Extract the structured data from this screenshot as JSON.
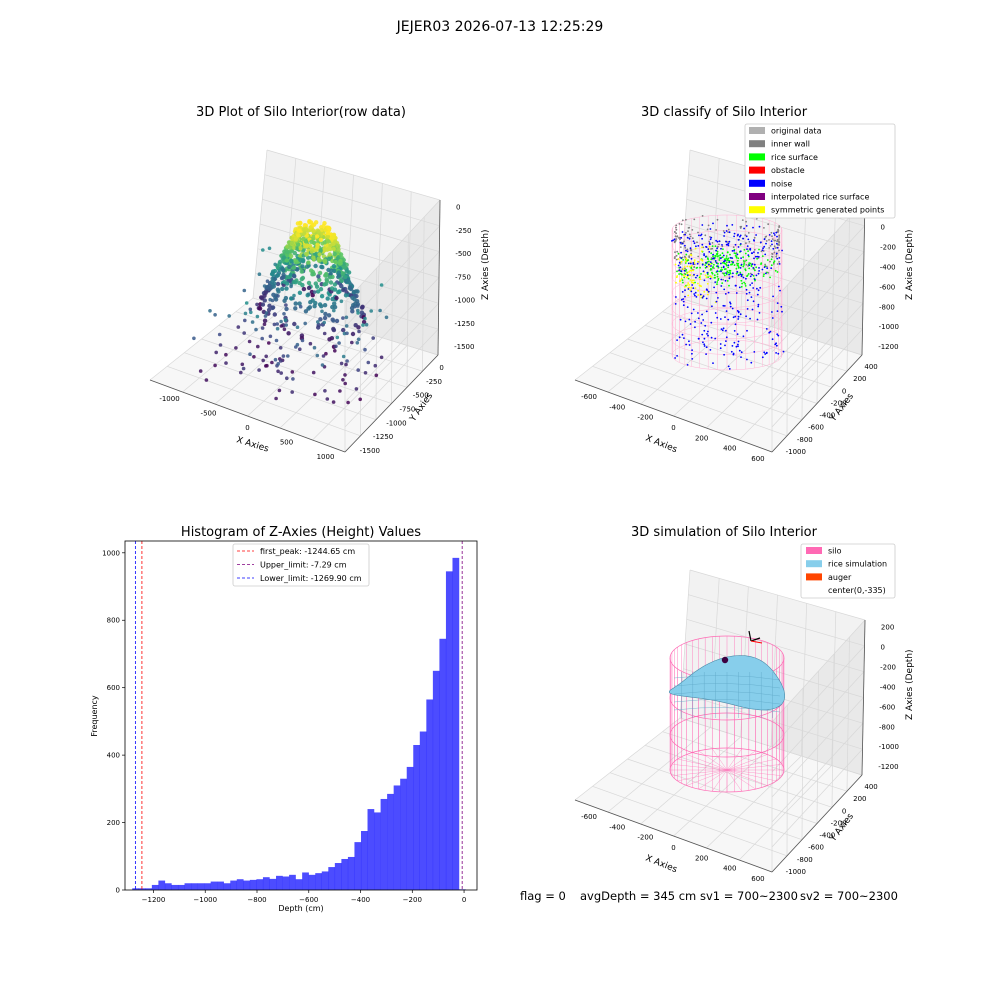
{
  "figure": {
    "suptitle": "JEJER03 2026-07-13 12:25:29",
    "footer": {
      "flag": "flag = 0",
      "avg": "avgDepth = 345 cm",
      "sv1": "sv1 = 700~2300",
      "sv2": "sv2 = 700~2300"
    }
  },
  "chart_data": [
    {
      "type": "scatter",
      "subtype": "3d",
      "title": "3D Plot of Silo Interior(row data)",
      "xlabel": "X Axies",
      "ylabel": "Y Axies",
      "zlabel": "Z Axies (Depth)",
      "xticks": [
        "-1000",
        "-500",
        "0",
        "500",
        "1000"
      ],
      "yticks": [
        "0",
        "-250",
        "-500",
        "-750",
        "-1000",
        "-1250",
        "-1500"
      ],
      "zticks": [
        "0",
        "-250",
        "-500",
        "-750",
        "-1000",
        "-1250",
        "-1500"
      ],
      "xlim": [
        -1150,
        1100
      ],
      "ylim": [
        -1550,
        100
      ],
      "zlim": [
        -1650,
        50
      ],
      "colormap": "viridis"
    },
    {
      "type": "scatter",
      "subtype": "3d",
      "title": "3D classify of Silo Interior",
      "xlabel": "X Axies",
      "ylabel": "Y Axies",
      "zlabel": "Z Axies (Depth)",
      "xticks": [
        "-600",
        "-400",
        "-200",
        "0",
        "200",
        "400",
        "600"
      ],
      "yticks": [
        "400",
        "200",
        "0",
        "-200",
        "-400",
        "-600",
        "-800",
        "-1000"
      ],
      "zticks": [
        "200",
        "0",
        "-200",
        "-400",
        "-600",
        "-800",
        "-1000",
        "-1200"
      ],
      "legend_position": "top-right",
      "legend": [
        {
          "label": "original data",
          "color": "#b0b0b0"
        },
        {
          "label": "inner wall",
          "color": "#808080"
        },
        {
          "label": "rice surface",
          "color": "#00ff00"
        },
        {
          "label": "obstacle",
          "color": "#ff0000"
        },
        {
          "label": "noise",
          "color": "#0000ff"
        },
        {
          "label": "interpolated rice surface",
          "color": "#800080"
        },
        {
          "label": "symmetric generated points",
          "color": "#ffff00"
        }
      ]
    },
    {
      "type": "bar",
      "subtype": "histogram",
      "title": "Histogram of Z-Axies (Height) Values",
      "xlabel": "Depth (cm)",
      "ylabel": "Frequency",
      "xlim": [
        -1310,
        50
      ],
      "ylim": [
        0,
        1035
      ],
      "xticks": [
        -1200,
        -1000,
        -800,
        -600,
        -400,
        -200,
        0
      ],
      "xtick_labels": [
        "−1200",
        "−1000",
        "−800",
        "−600",
        "−400",
        "−200",
        "0"
      ],
      "yticks": [
        0,
        200,
        400,
        600,
        800,
        1000
      ],
      "bin_width": 25.25,
      "bin_start": -1282,
      "bar_color": "#0000ff",
      "values": [
        5,
        5,
        5,
        15,
        28,
        20,
        15,
        15,
        20,
        20,
        20,
        20,
        25,
        25,
        20,
        28,
        32,
        28,
        30,
        32,
        38,
        33,
        42,
        40,
        45,
        32,
        52,
        45,
        50,
        55,
        68,
        80,
        92,
        98,
        142,
        175,
        240,
        230,
        270,
        285,
        310,
        330,
        365,
        430,
        470,
        565,
        650,
        745,
        945,
        985,
        2
      ],
      "lines": [
        {
          "label": "first_peak: -1244.65 cm",
          "x": -1244.65,
          "color": "#ff0000"
        },
        {
          "label": "Upper_limit: -7.29 cm",
          "x": -7.29,
          "color": "#800080"
        },
        {
          "label": "Lower_limit: -1269.90 cm",
          "x": -1269.9,
          "color": "#0000ff"
        }
      ],
      "legend_position": "top-center"
    },
    {
      "type": "area",
      "subtype": "3d-surface",
      "title": "3D simulation of Silo Interior",
      "xlabel": "X Axies",
      "ylabel": "Y Axies",
      "zlabel": "Z Axies (Depth)",
      "xticks": [
        "-600",
        "-400",
        "-200",
        "0",
        "200",
        "400",
        "600"
      ],
      "yticks": [
        "400",
        "200",
        "0",
        "-200",
        "-400",
        "-600",
        "-800",
        "-1000"
      ],
      "zticks": [
        "200",
        "0",
        "-200",
        "-400",
        "-600",
        "-800",
        "-1000",
        "-1200"
      ],
      "legend_position": "top-right",
      "legend": [
        {
          "label": "silo",
          "color": "#ff69b4"
        },
        {
          "label": "rice simulation",
          "color": "#87ceeb"
        },
        {
          "label": "auger",
          "color": "#ff4500"
        },
        {
          "label": "center(0,-335)",
          "color": ""
        }
      ]
    }
  ]
}
